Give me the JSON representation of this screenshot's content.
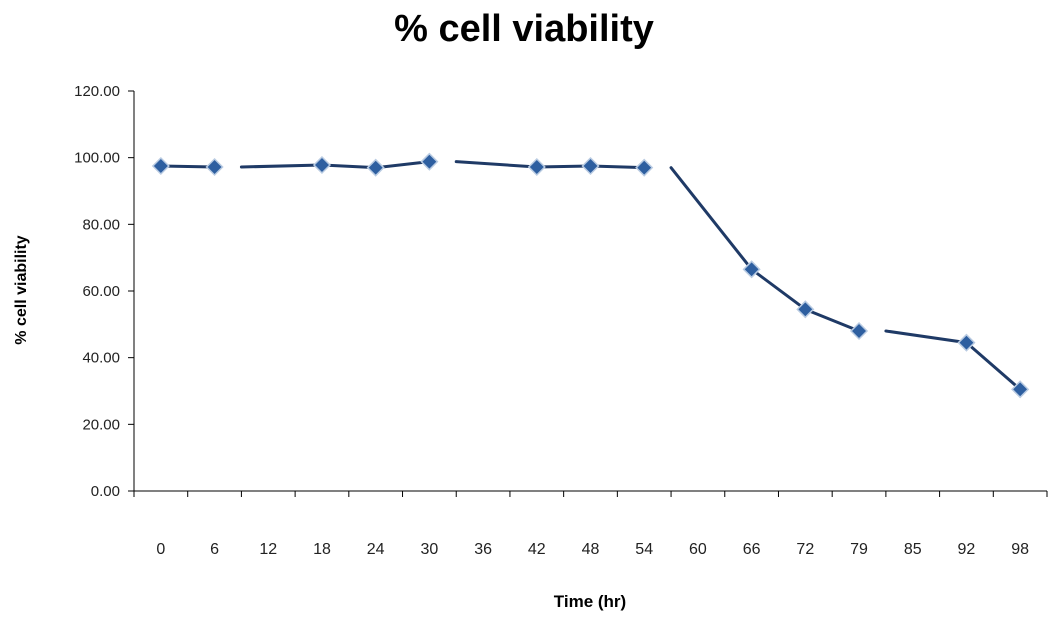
{
  "chart_data": {
    "type": "line",
    "title": "% cell viability",
    "xlabel": "Time (hr)",
    "ylabel": "% cell viability",
    "categories": [
      "0",
      "6",
      "12",
      "18",
      "24",
      "30",
      "36",
      "42",
      "48",
      "54",
      "60",
      "66",
      "72",
      "79",
      "85",
      "92",
      "98"
    ],
    "y_tick_labels": [
      "0.00",
      "20.00",
      "40.00",
      "60.00",
      "80.00",
      "100.00",
      "120.00"
    ],
    "ylim": [
      0,
      120
    ],
    "grid": false,
    "legend": "none",
    "series": [
      {
        "marker": "diamond",
        "values": [
          97.5,
          97.2,
          null,
          97.8,
          97.0,
          98.8,
          null,
          97.2,
          97.5,
          97.0,
          null,
          66.5,
          54.5,
          48.0,
          null,
          44.5,
          30.5
        ]
      }
    ],
    "colors": {
      "line": "#1f3a66",
      "marker_fill": "#2e5fa0",
      "marker_edge": "#b9cbe2",
      "axis": "#000000"
    }
  }
}
